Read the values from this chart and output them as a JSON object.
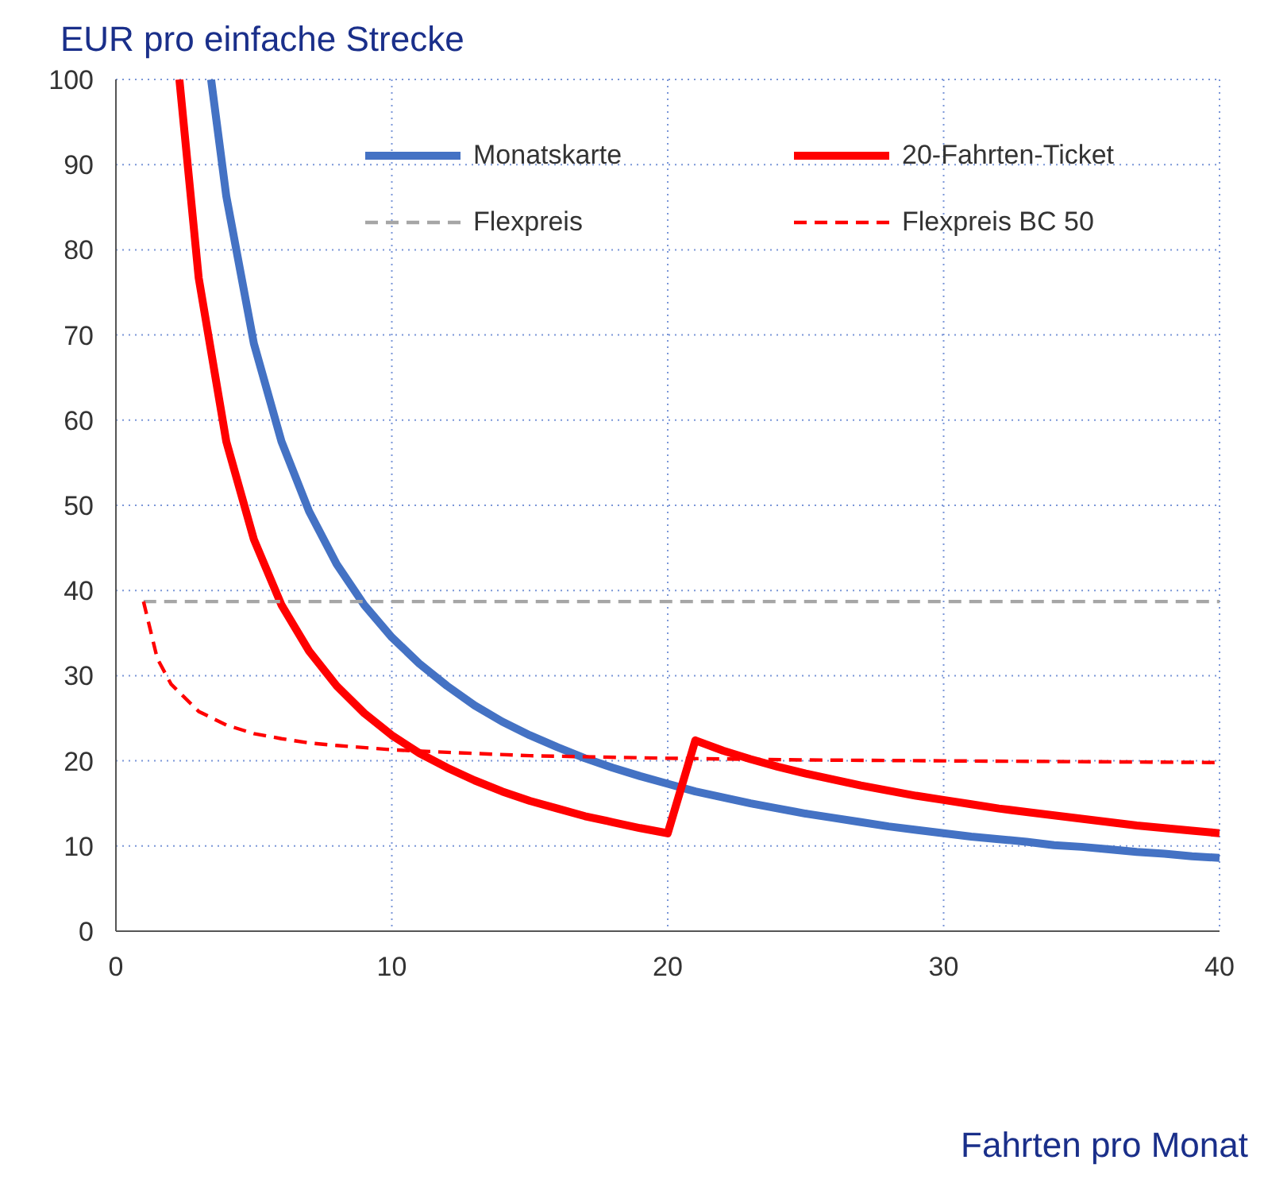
{
  "chart_data": {
    "type": "line",
    "ylabel": "EUR pro einfache Strecke",
    "xlabel": "Fahrten pro Monat",
    "xlim": [
      0,
      40
    ],
    "xticks": [
      0,
      10,
      20,
      30,
      40
    ],
    "ylim": [
      0,
      100
    ],
    "yticks": [
      0,
      10,
      20,
      30,
      40,
      50,
      60,
      70,
      80,
      90,
      100
    ],
    "grid": true,
    "legend": "top right",
    "marker": "none",
    "series": [
      {
        "name": "Monatskarte",
        "color": "#4472c4",
        "line_style": "solid",
        "x": [
          3.45,
          4,
          5,
          6,
          7,
          8,
          9,
          10,
          11,
          12,
          13,
          14,
          15,
          16,
          17,
          18,
          19,
          20,
          21,
          22,
          23,
          24,
          25,
          26,
          27,
          28,
          29,
          30,
          31,
          32,
          33,
          34,
          35,
          36,
          37,
          38,
          39,
          40
        ],
        "values": [
          100,
          86.3,
          69,
          57.5,
          49.3,
          43.1,
          38.3,
          34.5,
          31.4,
          28.8,
          26.5,
          24.6,
          23,
          21.6,
          20.3,
          19.2,
          18.2,
          17.3,
          16.4,
          15.7,
          15,
          14.4,
          13.8,
          13.3,
          12.8,
          12.3,
          11.9,
          11.5,
          11.1,
          10.8,
          10.5,
          10.1,
          9.9,
          9.6,
          9.3,
          9.1,
          8.8,
          8.6
        ]
      },
      {
        "name": "20-Fahrten-Ticket",
        "color": "#ff0000",
        "line_style": "solid",
        "x": [
          2.3,
          3,
          4,
          5,
          6,
          7,
          8,
          9,
          10,
          11,
          12,
          13,
          14,
          15,
          16,
          17,
          18,
          19,
          20,
          21,
          22,
          23,
          24,
          25,
          26,
          27,
          28,
          29,
          30,
          31,
          32,
          33,
          34,
          35,
          36,
          37,
          38,
          39,
          40
        ],
        "values": [
          100,
          76.7,
          57.5,
          46,
          38.3,
          32.9,
          28.8,
          25.6,
          23,
          20.9,
          19.2,
          17.7,
          16.4,
          15.3,
          14.4,
          13.5,
          12.8,
          12.1,
          11.5,
          22.4,
          21.2,
          20.2,
          19.3,
          18.5,
          17.8,
          17.1,
          16.5,
          15.9,
          15.4,
          14.9,
          14.4,
          14,
          13.6,
          13.2,
          12.8,
          12.4,
          12.1,
          11.8,
          11.5
        ]
      },
      {
        "name": "Flexpreis",
        "color": "#a6a6a6",
        "line_style": "dashed",
        "x": [
          1,
          40
        ],
        "values": [
          38.7,
          38.7
        ]
      },
      {
        "name": "Flexpreis BC 50",
        "color": "#ff0000",
        "line_style": "dashed",
        "x": [
          1,
          1.5,
          2,
          3,
          4,
          5,
          6,
          7,
          8,
          10,
          12,
          15,
          20,
          25,
          30,
          40
        ],
        "values": [
          38.7,
          32,
          29,
          25.8,
          24.2,
          23.2,
          22.6,
          22.1,
          21.8,
          21.3,
          21,
          20.6,
          20.3,
          20.1,
          20,
          19.8
        ]
      }
    ]
  }
}
